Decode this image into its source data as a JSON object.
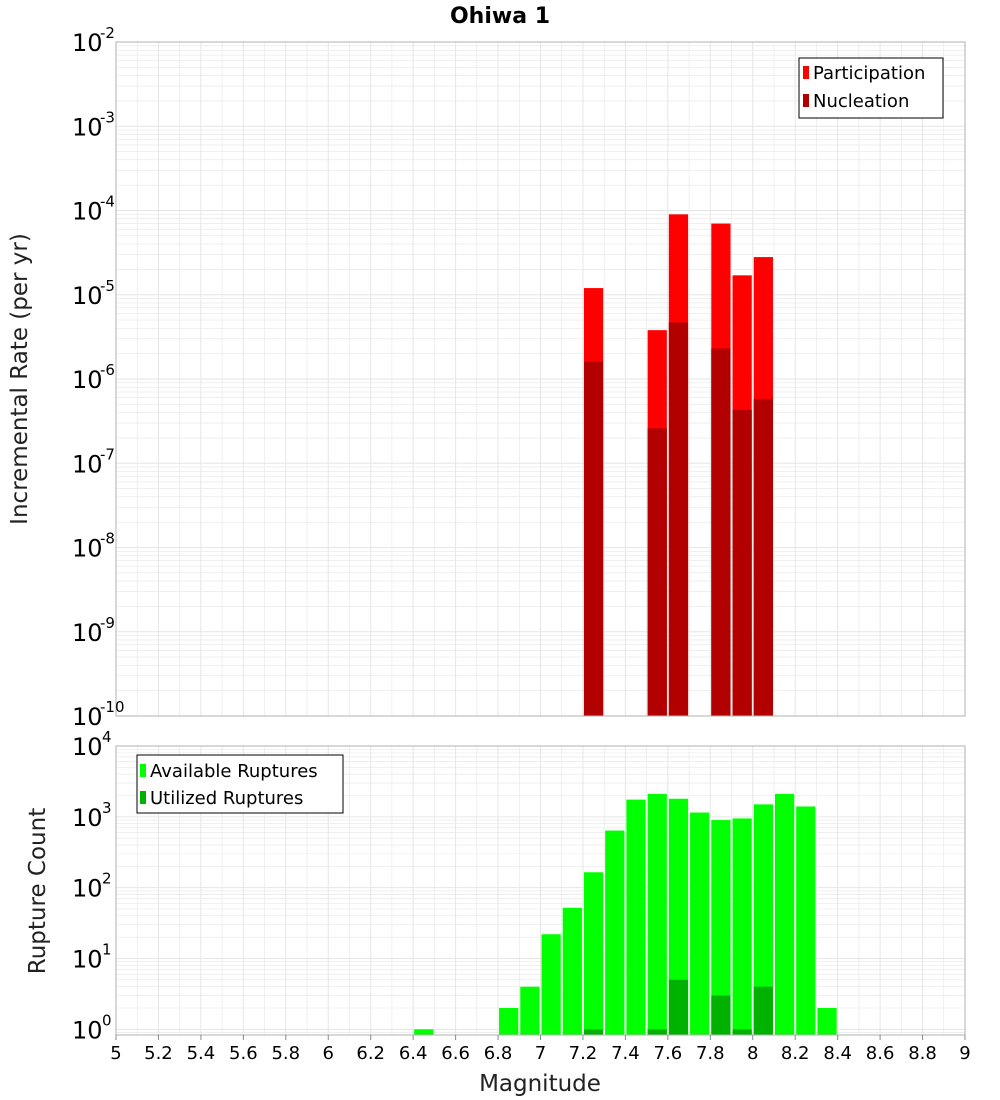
{
  "title": "Ohiwa 1",
  "colors": {
    "participation": "#ff0000",
    "nucleation": "#b20000",
    "available": "#00ff00",
    "utilized": "#00b200",
    "grid": "#e6e6e6",
    "frame": "#b0b0b0"
  },
  "chart_data": [
    {
      "type": "bar",
      "panel": "rate",
      "ylabel": "Incremental Rate (per yr)",
      "yscale": "log",
      "ylim_exponents": [
        -10,
        -2
      ],
      "ytick_exponents": [
        "-10",
        "-9",
        "-8",
        "-7",
        "-6",
        "-5",
        "-4",
        "-3",
        "-2"
      ],
      "xlim": [
        5,
        9
      ],
      "bin_width": 0.1,
      "legend": [
        "Participation",
        "Nucleation"
      ],
      "legend_position": "top-right",
      "series": [
        {
          "name": "Participation",
          "x": [
            7.25,
            7.55,
            7.65,
            7.85,
            7.95,
            8.05
          ],
          "values": [
            1.2e-05,
            3.8e-06,
            9e-05,
            7e-05,
            1.7e-05,
            2.8e-05
          ]
        },
        {
          "name": "Nucleation",
          "x": [
            7.25,
            7.55,
            7.65,
            7.85,
            7.95,
            8.05
          ],
          "values": [
            1.6e-06,
            2.6e-07,
            4.7e-06,
            2.3e-06,
            4.3e-07,
            5.8e-07
          ]
        }
      ]
    },
    {
      "type": "bar",
      "panel": "count",
      "ylabel": "Rupture Count",
      "xlabel": "Magnitude",
      "yscale": "log",
      "ylim_exponents": [
        -0.08,
        4
      ],
      "ytick_exponents": [
        "0",
        "1",
        "2",
        "3",
        "4"
      ],
      "xlim": [
        5,
        9
      ],
      "xticks": [
        "5",
        "5.2",
        "5.4",
        "5.6",
        "5.8",
        "6",
        "6.2",
        "6.4",
        "6.6",
        "6.8",
        "7",
        "7.2",
        "7.4",
        "7.6",
        "7.8",
        "8",
        "8.2",
        "8.4",
        "8.6",
        "8.8",
        "9"
      ],
      "bin_width": 0.1,
      "legend": [
        "Available Ruptures",
        "Utilized Ruptures"
      ],
      "legend_position": "top-left",
      "series": [
        {
          "name": "Available Ruptures",
          "x": [
            6.45,
            6.85,
            6.95,
            7.05,
            7.15,
            7.25,
            7.35,
            7.45,
            7.55,
            7.65,
            7.75,
            7.85,
            7.95,
            8.05,
            8.15,
            8.25,
            8.35
          ],
          "values": [
            1,
            2,
            4,
            22,
            52,
            165,
            640,
            1750,
            2100,
            1800,
            1150,
            900,
            950,
            1500,
            2100,
            1400,
            2
          ]
        },
        {
          "name": "Utilized Ruptures",
          "x": [
            7.25,
            7.55,
            7.65,
            7.85,
            7.95,
            8.05
          ],
          "values": [
            1,
            1,
            5,
            3,
            1,
            4
          ]
        }
      ]
    }
  ]
}
